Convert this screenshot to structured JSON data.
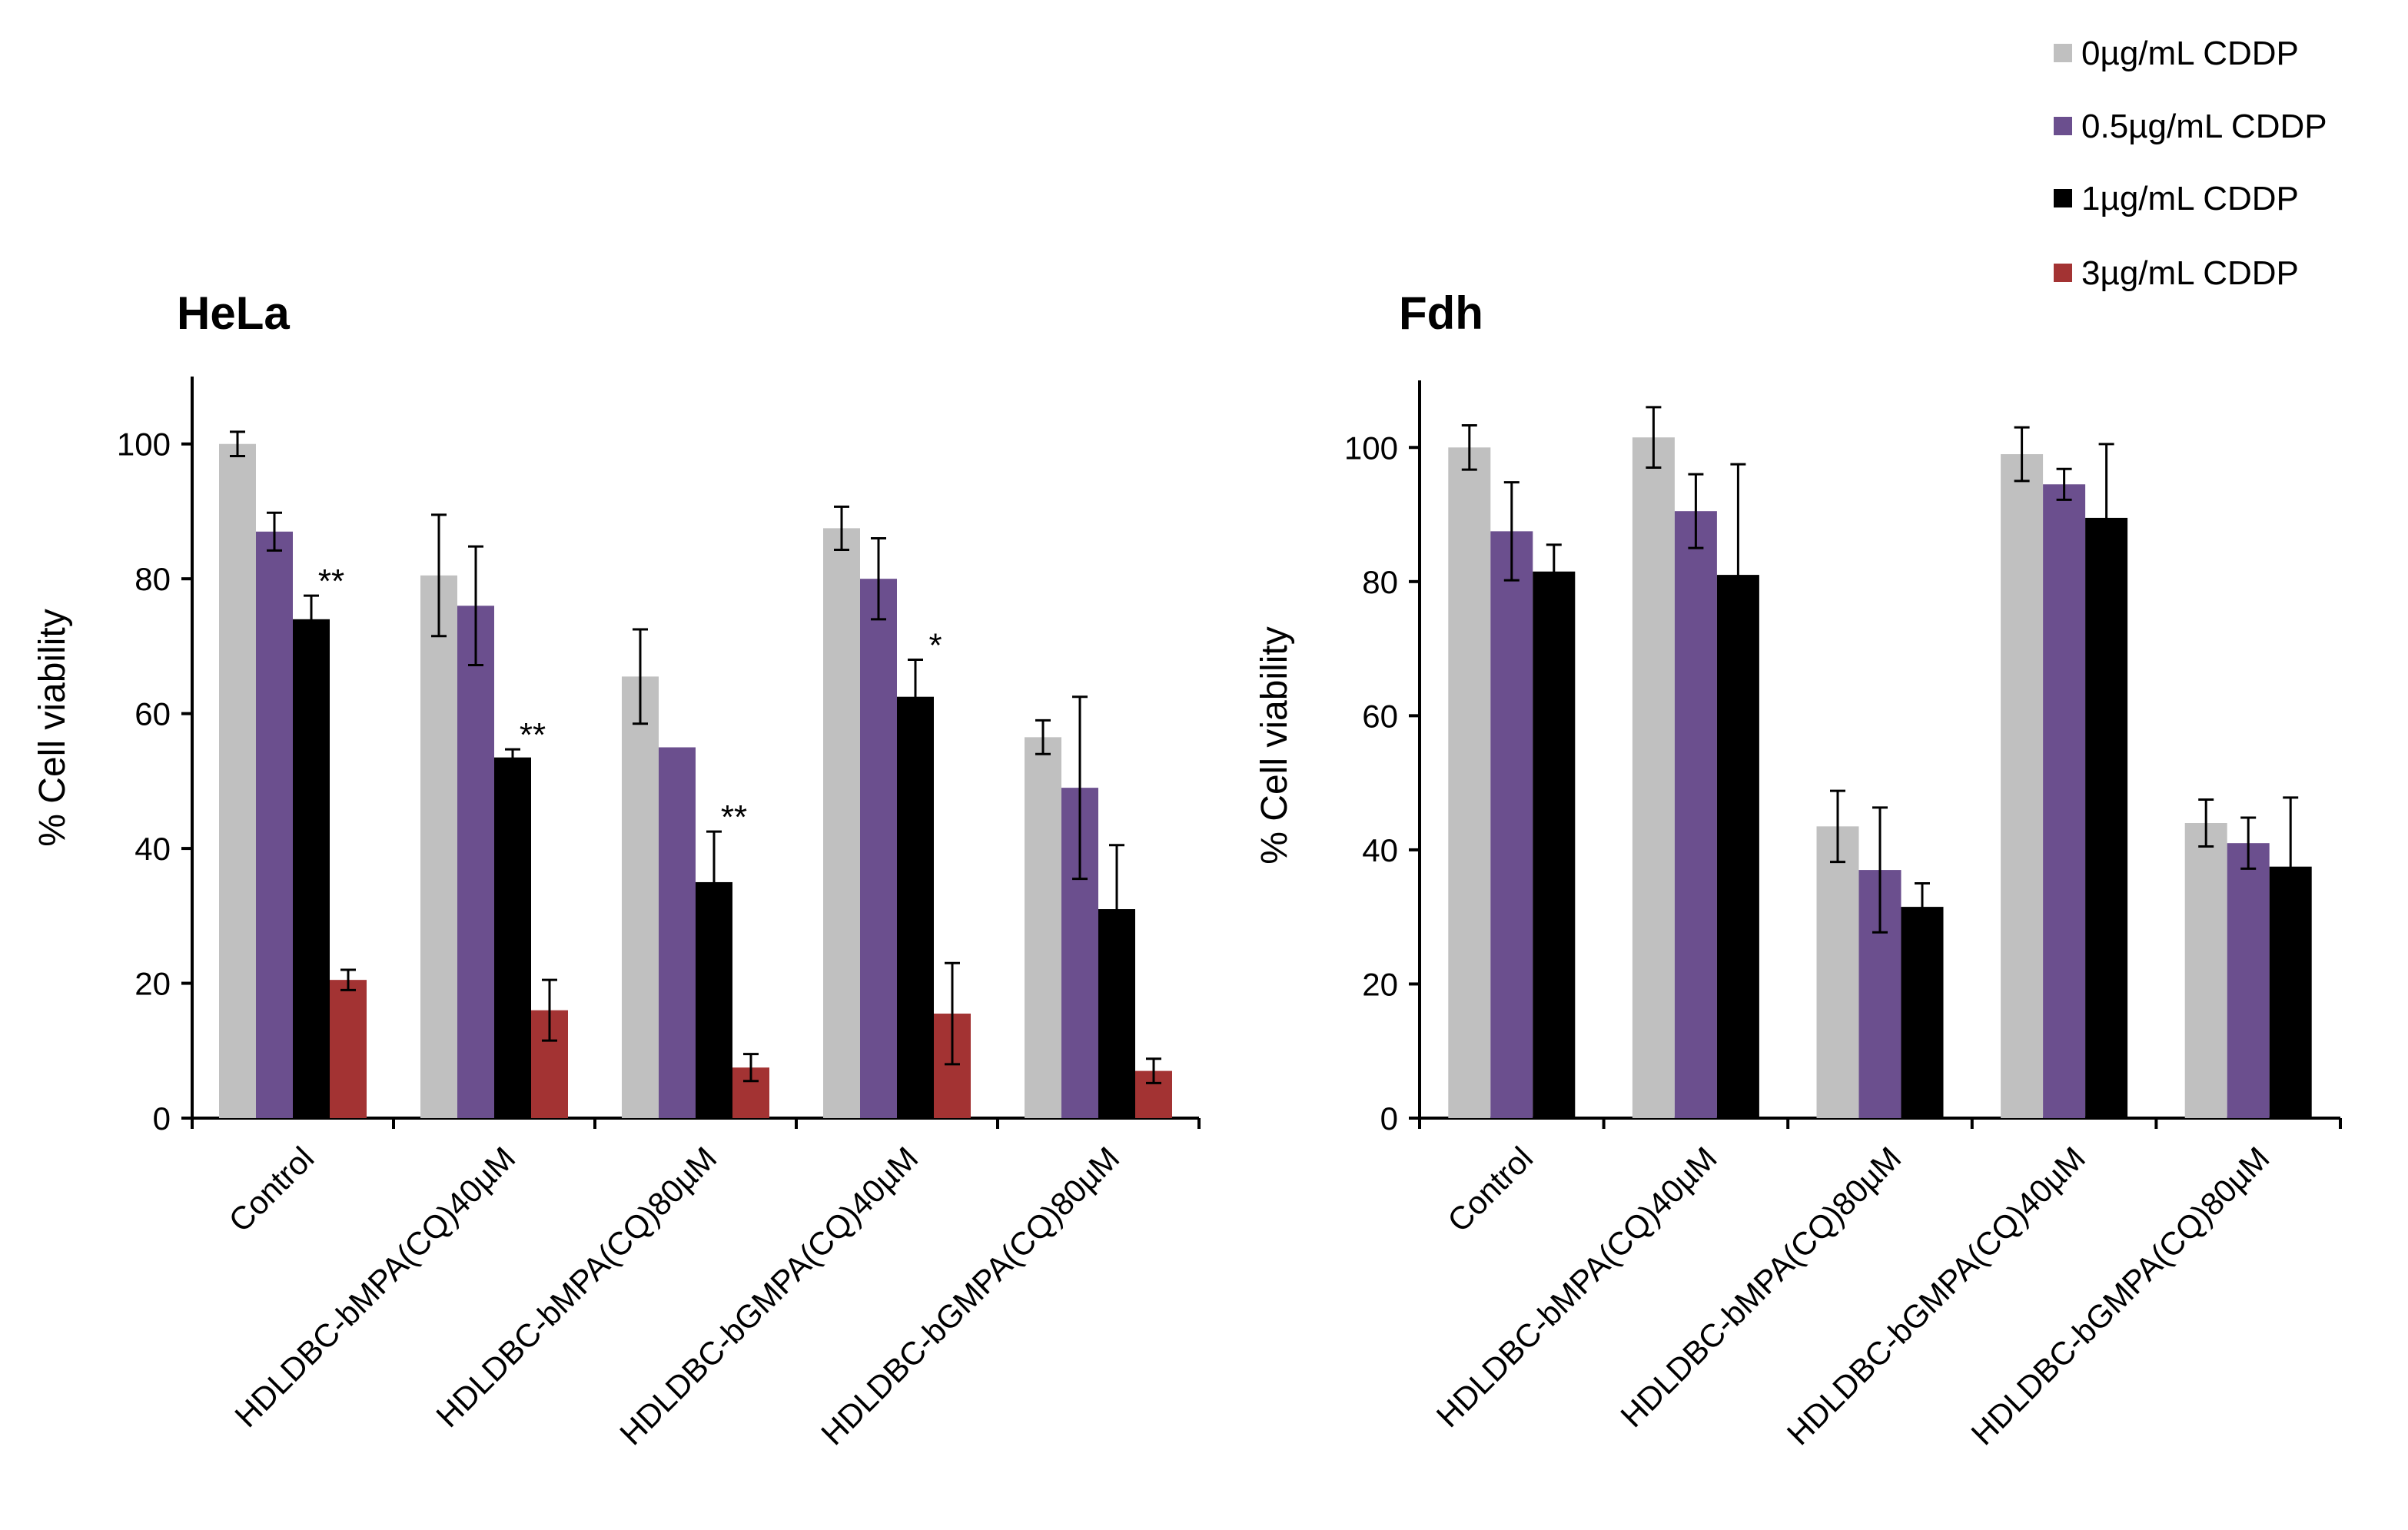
{
  "legend": [
    {
      "label": "0µg/mL CDDP",
      "color": "#c0c0c0"
    },
    {
      "label": "0.5µg/mL CDDP",
      "color": "#6b4f8e"
    },
    {
      "label": "1µg/mL CDDP",
      "color": "#000000"
    },
    {
      "label": "3µg/mL CDDP",
      "color": "#a33333"
    }
  ],
  "chart_data": [
    {
      "type": "bar",
      "title": "HeLa",
      "xlabel": "",
      "ylabel": "% Cell viability",
      "ylim": [
        0,
        110
      ],
      "yticks": [
        0,
        20,
        40,
        60,
        80,
        100
      ],
      "categories": [
        "Control",
        "HDLDBC-bMPA(CQ)40µM",
        "HDLDBC-bMPA(CQ)80µM",
        "HDLDBC-bGMPA(CQ)40µM",
        "HDLDBC-bGMPA(CQ)80µM"
      ],
      "series": [
        {
          "name": "0µg/mL CDDP",
          "color": "#c0c0c0",
          "values": [
            100,
            80.5,
            65.5,
            87.5,
            56.5
          ],
          "errors": [
            1.8,
            9,
            7,
            3.2,
            2.5
          ]
        },
        {
          "name": "0.5µg/mL CDDP",
          "color": "#6b4f8e",
          "values": [
            87,
            76,
            55,
            80,
            49
          ],
          "errors": [
            2.8,
            8.8,
            0,
            6,
            13.5
          ]
        },
        {
          "name": "1µg/mL CDDP",
          "color": "#000000",
          "values": [
            74,
            53.5,
            35,
            62.5,
            31
          ],
          "errors": [
            3.5,
            1.2,
            7.5,
            5.5,
            9.5
          ]
        },
        {
          "name": "3µg/mL CDDP",
          "color": "#a33333",
          "values": [
            20.5,
            16,
            7.5,
            15.5,
            7
          ],
          "errors": [
            1.5,
            4.5,
            2,
            7.5,
            1.8
          ]
        }
      ],
      "annotations": [
        {
          "text": "**",
          "category": 0,
          "series": 2
        },
        {
          "text": "**",
          "category": 1,
          "series": 2
        },
        {
          "text": "**",
          "category": 2,
          "series": 2
        },
        {
          "text": "*",
          "category": 3,
          "series": 2
        }
      ]
    },
    {
      "type": "bar",
      "title": "Fdh",
      "xlabel": "",
      "ylabel": "% Cell viability",
      "ylim": [
        0,
        110
      ],
      "yticks": [
        0,
        20,
        40,
        60,
        80,
        100
      ],
      "categories": [
        "Control",
        "HDLDBC-bMPA(CQ)40µM",
        "HDLDBC-bMPA(CQ)80µM",
        "HDLDBC-bGMPA(CQ)40µM",
        "HDLDBC-bGMPA(CQ)80µM"
      ],
      "series": [
        {
          "name": "0µg/mL CDDP",
          "color": "#c0c0c0",
          "values": [
            100,
            101.5,
            43.5,
            99,
            44
          ],
          "errors": [
            3.3,
            4.5,
            5.3,
            4,
            3.5
          ]
        },
        {
          "name": "0.5µg/mL CDDP",
          "color": "#6b4f8e",
          "values": [
            87.5,
            90.5,
            37,
            94.5,
            41
          ],
          "errors": [
            7.3,
            5.5,
            9.3,
            2.3,
            3.8
          ]
        },
        {
          "name": "1µg/mL CDDP",
          "color": "#000000",
          "values": [
            81.5,
            81,
            31.5,
            89.5,
            37.5
          ],
          "errors": [
            4,
            16.5,
            3.5,
            11,
            10.3
          ]
        }
      ],
      "annotations": []
    }
  ]
}
